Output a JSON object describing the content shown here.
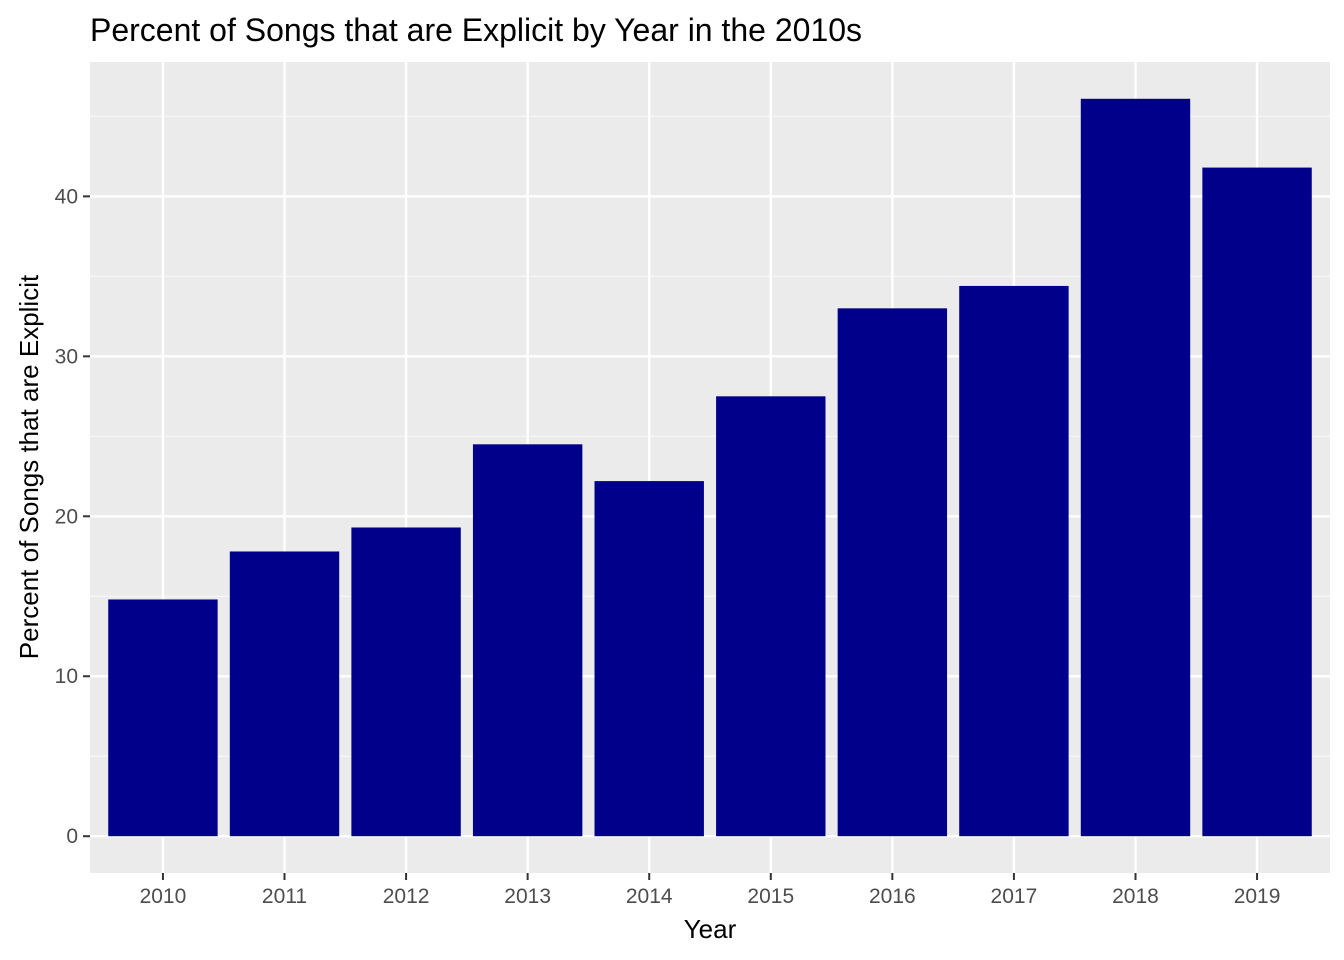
{
  "chart_data": {
    "type": "bar",
    "title": "Percent of Songs that are Explicit by Year in the 2010s",
    "xlabel": "Year",
    "ylabel": "Percent of Songs that are Explicit",
    "categories": [
      "2010",
      "2011",
      "2012",
      "2013",
      "2014",
      "2015",
      "2016",
      "2017",
      "2018",
      "2019"
    ],
    "values": [
      14.8,
      17.8,
      19.3,
      24.5,
      22.2,
      27.5,
      33.0,
      34.4,
      46.1,
      41.8
    ],
    "ylim": [
      -2.3,
      48.4
    ],
    "yticks": [
      0,
      10,
      20,
      30,
      40
    ],
    "ytick_labels": [
      "0",
      "10",
      "20",
      "30",
      "40"
    ],
    "grid": true,
    "legend": "none",
    "colors": {
      "bar": "#00008b",
      "panel_background": "#ebebeb",
      "grid_major": "#ffffff",
      "grid_minor": "#f7f7f7",
      "tick_mark": "#333333"
    }
  }
}
